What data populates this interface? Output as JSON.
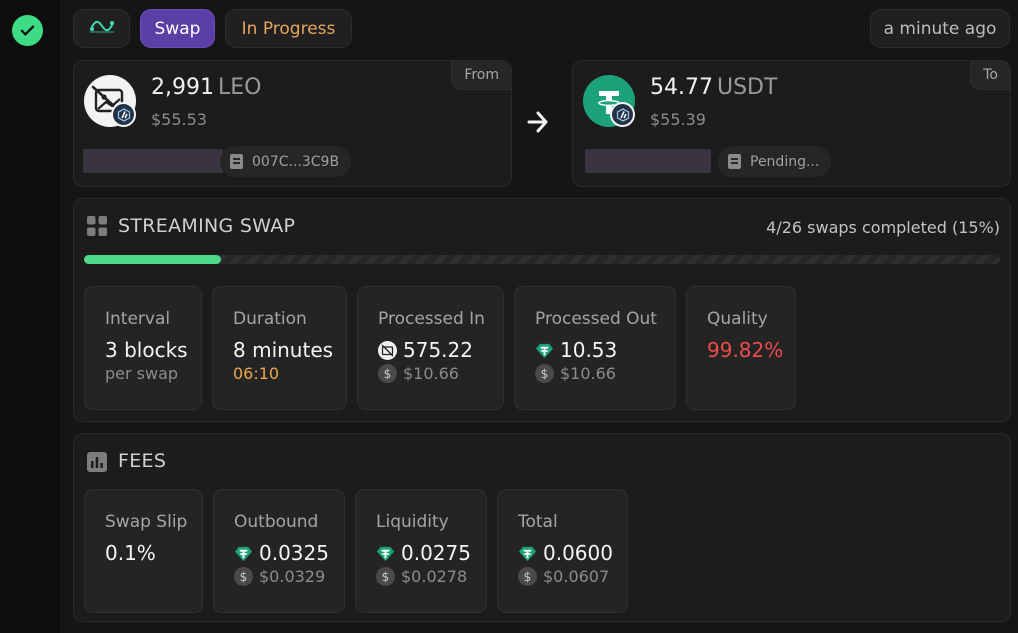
{
  "status": {
    "icon": "check-circle-icon",
    "color": "#3ddc84"
  },
  "header": {
    "route_icon": "route-icon",
    "type_label": "Swap",
    "status_label": "In Progress",
    "time_label": "a minute ago"
  },
  "from": {
    "tag": "From",
    "amount": "2,991",
    "symbol": "LEO",
    "usd": "$55.53",
    "address": "007C...3C9B",
    "token_icon": "broken-image-icon",
    "chain_icon": "arbitrum-icon"
  },
  "to": {
    "tag": "To",
    "amount": "54.77",
    "symbol": "USDT",
    "usd": "$55.39",
    "address": "Pending...",
    "token_icon": "tether-icon",
    "chain_icon": "arbitrum-icon"
  },
  "streaming": {
    "title": "STREAMING SWAP",
    "completed_text": "4/26 swaps completed (15%)",
    "progress_fraction": 0.15,
    "interval": {
      "label": "Interval",
      "value": "3 blocks",
      "sub": "per swap"
    },
    "duration": {
      "label": "Duration",
      "value": "8 minutes",
      "sub": "06:10"
    },
    "processed_in": {
      "label": "Processed In",
      "value": "575.22",
      "usd": "$10.66"
    },
    "processed_out": {
      "label": "Processed Out",
      "value": "10.53",
      "usd": "$10.66"
    },
    "quality": {
      "label": "Quality",
      "value": "99.82%"
    }
  },
  "fees": {
    "title": "FEES",
    "swap_slip": {
      "label": "Swap Slip",
      "value": "0.1%"
    },
    "outbound": {
      "label": "Outbound",
      "value": "0.0325",
      "usd": "$0.0329"
    },
    "liquidity": {
      "label": "Liquidity",
      "value": "0.0275",
      "usd": "$0.0278"
    },
    "total": {
      "label": "Total",
      "value": "0.0600",
      "usd": "$0.0607"
    }
  },
  "colors": {
    "accent_purple": "#5b3fa6",
    "progress_green": "#4cd887",
    "warning_orange": "#f0a74c",
    "quality_red": "#ef4b4b",
    "tether_green": "#1ba27a"
  }
}
